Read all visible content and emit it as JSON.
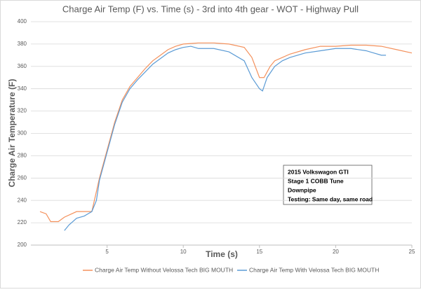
{
  "chart_data": {
    "type": "line",
    "title": "Charge Air Temp (F) vs. Time (s) - 3rd into 4th gear - WOT - Highway Pull",
    "x_label": "Time (s)",
    "y_label": "Charge Air Temperature (F)",
    "annotation": [
      "2015 Volkswagon GTI",
      "Stage 1 COBB Tune",
      "Downpipe",
      "Testing: Same day, same road"
    ],
    "xlim": [
      0,
      25
    ],
    "xticks": [
      5,
      10,
      15,
      20,
      25
    ],
    "ylim": [
      200,
      400
    ],
    "yticks": [
      200,
      220,
      240,
      260,
      280,
      300,
      320,
      340,
      360,
      380,
      400
    ],
    "grid": true,
    "legend": "bottom",
    "series": [
      {
        "name": "Charge Air Temp Without Velossa Tech BIG MOUTH",
        "color": "#f4915c",
        "x": [
          0.6,
          1.0,
          1.3,
          1.8,
          2.2,
          3.0,
          4.0,
          4.5,
          5.0,
          5.5,
          6.0,
          6.5,
          7.0,
          7.5,
          8.0,
          8.5,
          9.0,
          9.5,
          10.0,
          11.0,
          12.0,
          13.0,
          14.0,
          14.5,
          15.0,
          15.3,
          15.7,
          16.0,
          16.5,
          17.0,
          18.0,
          19.0,
          20.0,
          21.0,
          22.0,
          23.0,
          24.0,
          25.0
        ],
        "values": [
          230,
          228,
          221,
          221,
          225,
          230,
          230,
          260,
          285,
          310,
          330,
          342,
          350,
          358,
          365,
          370,
          375,
          378,
          380,
          381,
          381,
          380,
          377,
          368,
          350,
          350,
          360,
          365,
          368,
          371,
          375,
          378,
          378,
          379,
          379,
          378,
          375,
          372
        ]
      },
      {
        "name": "Charge Air Temp With Velossa Tech BIG MOUTH",
        "color": "#5b9bd5",
        "x": [
          2.2,
          2.5,
          3.0,
          3.5,
          4.0,
          4.3,
          4.5,
          5.0,
          5.5,
          6.0,
          6.5,
          7.0,
          7.5,
          8.0,
          8.5,
          9.0,
          9.5,
          10.0,
          10.5,
          11.0,
          12.0,
          13.0,
          14.0,
          14.5,
          15.0,
          15.2,
          15.5,
          16.0,
          16.5,
          17.0,
          18.0,
          19.0,
          20.0,
          21.0,
          22.0,
          22.5,
          23.0,
          23.3
        ],
        "values": [
          213,
          218,
          224,
          226,
          230,
          240,
          258,
          283,
          308,
          328,
          340,
          348,
          355,
          362,
          367,
          372,
          375,
          377,
          378,
          376,
          376,
          373,
          365,
          350,
          340,
          338,
          350,
          360,
          365,
          368,
          372,
          374,
          376,
          376,
          374,
          372,
          370,
          370
        ]
      }
    ]
  }
}
